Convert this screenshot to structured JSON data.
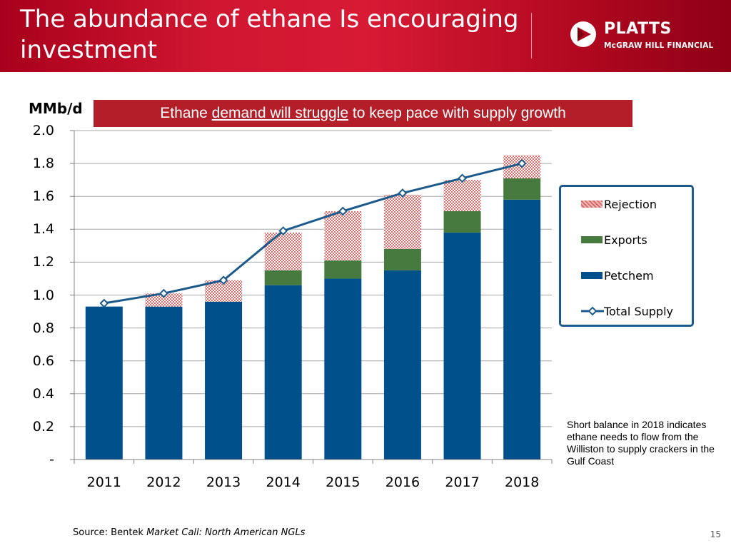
{
  "header": {
    "title": "The abundance of ethane Is encouraging investment",
    "brand": "PLATTS",
    "brand_sub": "McGRAW HILL FINANCIAL",
    "logo_icon": "play-triangle-icon"
  },
  "banner": {
    "prefix": "Ethane ",
    "emphasis": "demand will struggle",
    "suffix": " to keep pace with supply growth"
  },
  "note": "Short balance in 2018 indicates ethane needs to flow from the Williston to supply crackers in the Gulf Coast",
  "source": {
    "prefix": "Source: Bentek ",
    "title": "Market Call: North American NGLs"
  },
  "page_number": "15",
  "colors": {
    "header": "#c8102e",
    "banner": "#b41e28",
    "petchem": "#00508c",
    "exports": "#477a3e",
    "rejection": "#e99a9a",
    "total_supply": "#1c5a8c"
  },
  "chart_data": {
    "type": "bar",
    "stacked": true,
    "ylabel": "MMb/d",
    "ylim": [
      0,
      2.0
    ],
    "ytick_labels": [
      "-",
      "0.2",
      "0.4",
      "0.6",
      "0.8",
      "1.0",
      "1.2",
      "1.4",
      "1.6",
      "1.8",
      "2.0"
    ],
    "ytick_values": [
      0,
      0.2,
      0.4,
      0.6,
      0.8,
      1.0,
      1.2,
      1.4,
      1.6,
      1.8,
      2.0
    ],
    "categories": [
      "2011",
      "2012",
      "2013",
      "2014",
      "2015",
      "2016",
      "2017",
      "2018"
    ],
    "grid": true,
    "legend_placement": "right",
    "series": [
      {
        "name": "Petchem",
        "kind": "bar",
        "values": [
          0.93,
          0.93,
          0.96,
          1.06,
          1.1,
          1.15,
          1.38,
          1.58
        ]
      },
      {
        "name": "Exports",
        "kind": "bar",
        "values": [
          0.0,
          0.0,
          0.0,
          0.09,
          0.11,
          0.13,
          0.13,
          0.13
        ]
      },
      {
        "name": "Rejection",
        "kind": "bar",
        "values": [
          0.0,
          0.08,
          0.13,
          0.23,
          0.3,
          0.33,
          0.19,
          0.14
        ]
      },
      {
        "name": "Total Supply",
        "kind": "line",
        "values": [
          0.95,
          1.01,
          1.09,
          1.39,
          1.51,
          1.62,
          1.71,
          1.8
        ]
      }
    ]
  }
}
